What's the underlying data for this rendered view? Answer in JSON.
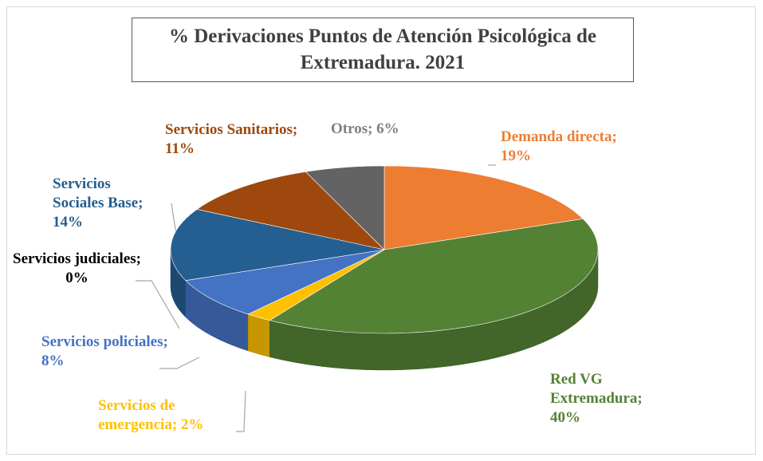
{
  "chart_data": {
    "type": "pie3d",
    "title": "% Derivaciones Puntos de Atención Psicológica de Extremadura. 2021",
    "categories": [
      "Demanda directa",
      "Red VG Extremadura",
      "Servicios de emergencia",
      "Servicios policiales",
      "Servicios judiciales",
      "Servicios Sociales Base",
      "Servicios Sanitarios",
      "Otros"
    ],
    "values": [
      19,
      40,
      2,
      8,
      0,
      14,
      11,
      6
    ],
    "value_labels": [
      "Demanda directa; 19%",
      "Red VG Extremadura; 40%",
      "Servicios de emergencia; 2%",
      "Servicios policiales; 8%",
      "Servicios judiciales; 0%",
      "Servicios Sociales Base; 14%",
      "Servicios Sanitarios; 11%",
      "Otros; 6%"
    ],
    "colors": [
      "#ED7D31",
      "#548235",
      "#FFC000",
      "#4472C4",
      "#A5A5A5",
      "#255E91",
      "#9E480E",
      "#636363"
    ],
    "label_colors": [
      "#ED7D31",
      "#548235",
      "#FFC000",
      "#4472C4",
      "#000000",
      "#255E91",
      "#9E480E",
      "#7F7F7F"
    ]
  }
}
